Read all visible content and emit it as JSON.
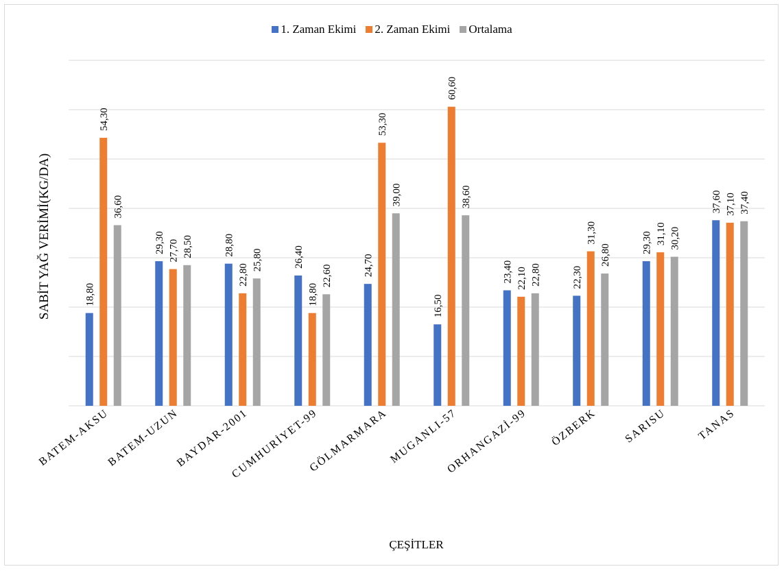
{
  "chart_data": {
    "type": "bar",
    "title": "",
    "xlabel": "ÇEŞİTLER",
    "ylabel": "SABİT YAĞ VERİMİ(KG/DA)",
    "ylim": [
      0,
      70
    ],
    "grid": true,
    "legend_position": "top",
    "categories": [
      "BATEM-AKSU",
      "BATEM-UZUN",
      "BAYDAR-2001",
      "CUMHURİYET-99",
      "GÖLMARMARA",
      "MUGANLI-57",
      "ORHANGAZİ-99",
      "ÖZBERK",
      "SARISU",
      "TANAS"
    ],
    "series": [
      {
        "name": "1. Zaman Ekimi",
        "color": "#4472c4",
        "values": [
          18.8,
          29.3,
          28.8,
          26.4,
          24.7,
          16.5,
          23.4,
          22.3,
          29.3,
          37.6
        ],
        "labels": [
          "18,80",
          "29,30",
          "28,80",
          "26,40",
          "24,70",
          "16,50",
          "23,40",
          "22,30",
          "29,30",
          "37,60"
        ]
      },
      {
        "name": "2. Zaman Ekimi",
        "color": "#ed7d31",
        "values": [
          54.3,
          27.7,
          22.8,
          18.8,
          53.3,
          60.6,
          22.1,
          31.3,
          31.1,
          37.1
        ],
        "labels": [
          "54,30",
          "27,70",
          "22,80",
          "18,80",
          "53,30",
          "60,60",
          "22,10",
          "31,30",
          "31,10",
          "37,10"
        ]
      },
      {
        "name": "Ortalama",
        "color": "#a5a5a5",
        "values": [
          36.6,
          28.5,
          25.8,
          22.6,
          39.0,
          38.6,
          22.8,
          26.8,
          30.2,
          37.4
        ],
        "labels": [
          "36,60",
          "28,50",
          "25,80",
          "22,60",
          "39,00",
          "38,60",
          "22,80",
          "26,80",
          "30,20",
          "37,40"
        ]
      }
    ]
  }
}
